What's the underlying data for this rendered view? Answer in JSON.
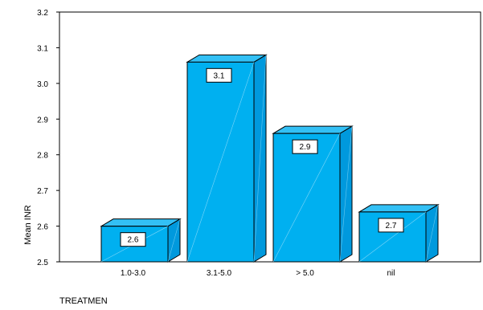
{
  "chart_data": {
    "type": "bar",
    "style": "3d",
    "categories": [
      "1.0-3.0",
      "3.1-5.0",
      "> 5.0",
      "nil"
    ],
    "values": [
      2.62,
      3.08,
      2.88,
      2.66
    ],
    "data_labels": [
      "2.6",
      "3.1",
      "2.9",
      "2.7"
    ],
    "ylim": [
      2.5,
      3.2
    ],
    "yticks": [
      "2.5",
      "2.6",
      "2.7",
      "2.8",
      "2.9",
      "3.0",
      "3.1",
      "3.2"
    ],
    "xlabel": "TREATMEN",
    "ylabel": "Mean INR",
    "grid": false,
    "legend": "none",
    "colors": {
      "bar_face": "#00b0f0",
      "bar_side": "#0099dd",
      "bar_top": "#33c0f5",
      "outline": "#000000",
      "background": "#ffffff"
    }
  }
}
